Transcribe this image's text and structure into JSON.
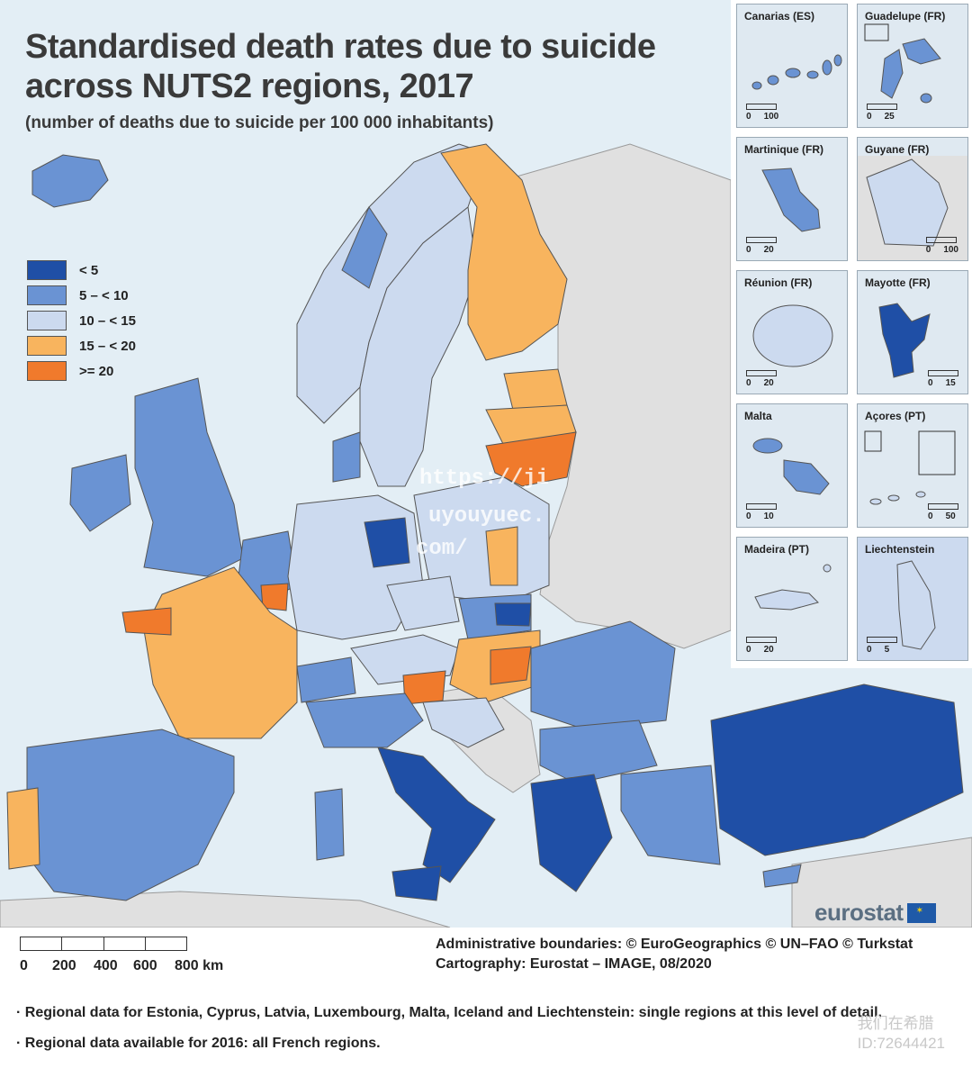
{
  "title_line1": "Standardised death rates due to suicide",
  "title_line2": "across NUTS2 regions, 2017",
  "subtitle": "(number of deaths due to suicide per 100 000 inhabitants)",
  "colors": {
    "c1": "#1f4fa6",
    "c2": "#6a93d3",
    "c3": "#ccdaef",
    "c4": "#f8b45e",
    "c5": "#f07a2c",
    "non_eu": "#e0e0e0",
    "sea": "#e3eef5"
  },
  "legend": [
    {
      "label": "< 5",
      "color": "#1f4fa6"
    },
    {
      "label": "5 – < 10",
      "color": "#6a93d3"
    },
    {
      "label": "10 – < 15",
      "color": "#ccdaef"
    },
    {
      "label": "15 – < 20",
      "color": "#f8b45e"
    },
    {
      "label": ">= 20",
      "color": "#f07a2c"
    }
  ],
  "insets": [
    {
      "title": "Canarias (ES)",
      "scale": [
        "0",
        "100"
      ]
    },
    {
      "title": "Guadelupe (FR)",
      "scale": [
        "0",
        "25"
      ]
    },
    {
      "title": "Martinique (FR)",
      "scale": [
        "0",
        "20"
      ]
    },
    {
      "title": "Guyane (FR)",
      "scale": [
        "0",
        "100"
      ]
    },
    {
      "title": "Réunion (FR)",
      "scale": [
        "0",
        "20"
      ]
    },
    {
      "title": "Mayotte (FR)",
      "scale": [
        "0",
        "15"
      ]
    },
    {
      "title": "Malta",
      "scale": [
        "0",
        "10"
      ]
    },
    {
      "title": "Açores (PT)",
      "scale": [
        "0",
        "50"
      ]
    },
    {
      "title": "Madeira (PT)",
      "scale": [
        "0",
        "20"
      ]
    },
    {
      "title": "Liechtenstein",
      "scale": [
        "0",
        "5"
      ]
    }
  ],
  "brand": "eurostat",
  "scalebar": {
    "ticks": [
      "0",
      "200",
      "400",
      "600",
      "800 km"
    ]
  },
  "credits": [
    "Administrative boundaries: © EuroGeographics © UN–FAO © Turkstat",
    "Cartography: Eurostat – IMAGE, 08/2020"
  ],
  "notes": [
    "Regional data for Estonia, Cyprus, Latvia, Luxembourg, Malta, Iceland and Liechtenstein: single regions at this level of detail.",
    "Regional data available for 2016: all French regions."
  ],
  "watermark_url": [
    "https://ji",
    "uyouyuec.",
    "com/"
  ],
  "watermark_cn": [
    "我们在希腊",
    "ID:72644421"
  ]
}
